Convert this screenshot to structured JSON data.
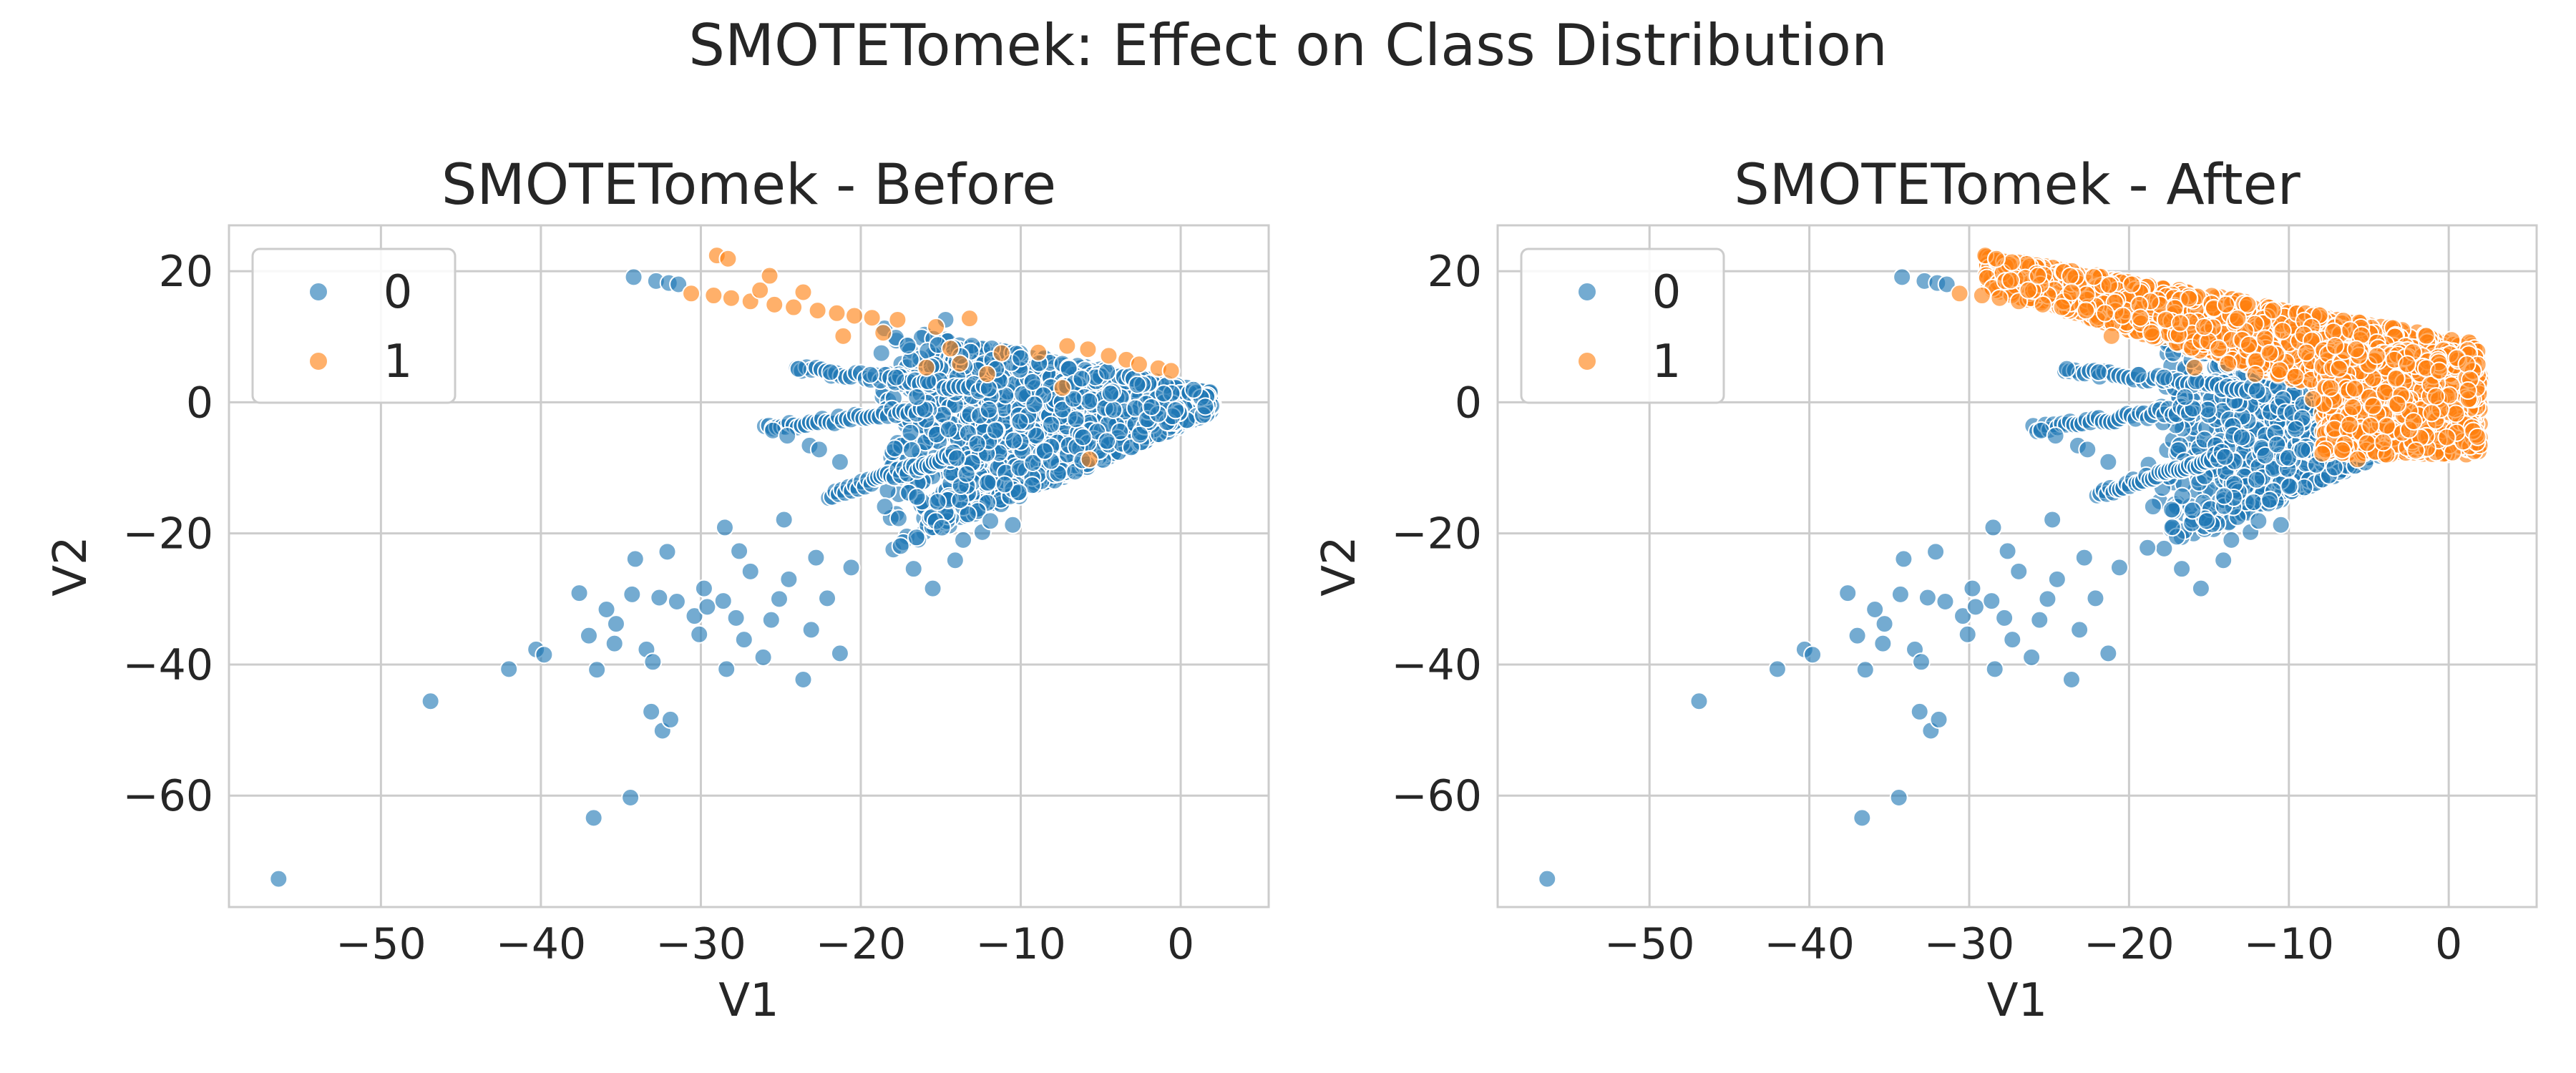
{
  "figure": {
    "title": "SMOTETomek: Effect on Class Distribution"
  },
  "colors": {
    "class_0": "#1f77b4",
    "class_1": "#ff7f0e",
    "grid": "#cccccc",
    "text": "#262626"
  },
  "chart_data": [
    {
      "type": "scatter",
      "title": "SMOTETomek - Before",
      "xlabel": "V1",
      "ylabel": "V2",
      "xlim": [
        -59.5,
        5.5
      ],
      "ylim": [
        -77,
        27
      ],
      "xticks": [
        -50,
        -40,
        -30,
        -20,
        -10,
        0
      ],
      "yticks": [
        20,
        0,
        -20,
        -40,
        -60
      ],
      "xtick_labels": [
        "−50",
        "−40",
        "−30",
        "−20",
        "−10",
        "0"
      ],
      "ytick_labels": [
        "20",
        "0",
        "−20",
        "−40",
        "−60"
      ],
      "grid": true,
      "legend": {
        "position": "upper-left",
        "entries": [
          "0",
          "1"
        ]
      },
      "series": [
        {
          "name": "0",
          "color": "#1f77b4",
          "points": [
            [
              -56.4,
              -72.7
            ],
            [
              -46.9,
              -45.6
            ],
            [
              -42,
              -40.7
            ],
            [
              -40.3,
              -37.7
            ],
            [
              -39.8,
              -38.5
            ],
            [
              -37.6,
              -29.1
            ],
            [
              -36.7,
              -63.4
            ],
            [
              -36.5,
              -40.8
            ],
            [
              -37,
              -35.6
            ],
            [
              -35.9,
              -31.6
            ],
            [
              -35.3,
              -33.8
            ],
            [
              -35.4,
              -36.8
            ],
            [
              -34.4,
              -60.3
            ],
            [
              -34.1,
              -23.9
            ],
            [
              -34.3,
              -29.3
            ],
            [
              -33.4,
              -37.7
            ],
            [
              -33,
              -39.6
            ],
            [
              -33.1,
              -47.2
            ],
            [
              -32.4,
              -50.1
            ],
            [
              -32.6,
              -29.8
            ],
            [
              -31.9,
              -48.4
            ],
            [
              -32.1,
              -22.8
            ],
            [
              -31.5,
              -30.4
            ],
            [
              -30.4,
              -32.6
            ],
            [
              -29.8,
              -28.4
            ],
            [
              -29.6,
              -31.2
            ],
            [
              -30.1,
              -35.4
            ],
            [
              -28.6,
              -30.3
            ],
            [
              -28.4,
              -40.7
            ],
            [
              -28.5,
              -19.1
            ],
            [
              -27.8,
              -32.9
            ],
            [
              -27.3,
              -36.2
            ],
            [
              -26.9,
              -25.8
            ],
            [
              -27.6,
              -22.7
            ],
            [
              -26.1,
              -38.9
            ],
            [
              -25.6,
              -33.2
            ],
            [
              -25.1,
              -30
            ],
            [
              -24.8,
              -17.9
            ],
            [
              -24.5,
              -27
            ],
            [
              -23.6,
              -42.3
            ],
            [
              -23.1,
              -34.7
            ],
            [
              -22.8,
              -23.7
            ],
            [
              -22.1,
              -29.9
            ],
            [
              -21.3,
              -38.3
            ],
            [
              -20.6,
              -25.2
            ],
            [
              -34.2,
              19.1
            ],
            [
              -32.8,
              18.5
            ],
            [
              -32,
              18.2
            ],
            [
              -31.4,
              18
            ],
            [
              -23.9,
              5.1
            ],
            [
              -21.9,
              4.6
            ],
            [
              -19.4,
              4.2
            ],
            [
              -17.8,
              3.8
            ],
            [
              -15.8,
              3.2
            ],
            [
              -25.5,
              -4.3
            ],
            [
              -24.6,
              -5.1
            ],
            [
              -23.2,
              -6.6
            ],
            [
              -22.6,
              -7.2
            ],
            [
              -21.3,
              -9.1
            ],
            [
              -16.5,
              0.8
            ],
            [
              -14.7,
              12.6
            ],
            [
              -15.5,
              -28.4
            ],
            [
              -16.7,
              -25.4
            ],
            [
              -14.1,
              -24.1
            ],
            [
              -13.6,
              -21
            ],
            [
              -18.5,
              -15.9
            ],
            [
              -12.4,
              -19.8
            ],
            [
              -11.9,
              -18.1
            ],
            [
              -10.5,
              -18.7
            ]
          ]
        },
        {
          "name": "1",
          "color": "#ff7f0e",
          "points": [
            [
              -29,
              22.4
            ],
            [
              -28.3,
              21.9
            ],
            [
              -30.6,
              16.6
            ],
            [
              -29.2,
              16.3
            ],
            [
              -28.1,
              15.9
            ],
            [
              -26.9,
              15.4
            ],
            [
              -26.3,
              17.1
            ],
            [
              -25.7,
              19.3
            ],
            [
              -25.4,
              14.9
            ],
            [
              -24.2,
              14.5
            ],
            [
              -23.6,
              16.8
            ],
            [
              -22.7,
              14
            ],
            [
              -21.5,
              13.6
            ],
            [
              -20.4,
              13.2
            ],
            [
              -19.3,
              12.9
            ],
            [
              -21.1,
              10.1
            ],
            [
              -18.6,
              10.6
            ],
            [
              -17.7,
              12.6
            ],
            [
              -15.3,
              11.5
            ],
            [
              -13.2,
              12.8
            ],
            [
              -14.4,
              8.2
            ],
            [
              -15.9,
              5.3
            ],
            [
              -13.8,
              5.9
            ],
            [
              -12.1,
              4.3
            ],
            [
              -11.2,
              7.5
            ],
            [
              -8.9,
              7.6
            ],
            [
              -7.1,
              8.6
            ],
            [
              -5.8,
              8.1
            ],
            [
              -4.5,
              7.1
            ],
            [
              -3.4,
              6.5
            ],
            [
              -2.6,
              5.8
            ],
            [
              -1.4,
              5.2
            ],
            [
              -0.6,
              4.8
            ],
            [
              -7.4,
              2.2
            ],
            [
              -5.7,
              -8.7
            ]
          ]
        }
      ]
    },
    {
      "type": "scatter",
      "title": "SMOTETomek - After",
      "xlabel": "V1",
      "ylabel": "V2",
      "xlim": [
        -59.5,
        5.5
      ],
      "ylim": [
        -77,
        27
      ],
      "xticks": [
        -50,
        -40,
        -30,
        -20,
        -10,
        0
      ],
      "yticks": [
        20,
        0,
        -20,
        -40,
        -60
      ],
      "xtick_labels": [
        "−50",
        "−40",
        "−30",
        "−20",
        "−10",
        "0"
      ],
      "ytick_labels": [
        "20",
        "0",
        "−20",
        "−40",
        "−60"
      ],
      "grid": true,
      "legend": {
        "position": "upper-left",
        "entries": [
          "0",
          "1"
        ]
      },
      "series": [
        {
          "name": "0",
          "color": "#1f77b4",
          "points": [
            [
              -56.4,
              -72.7
            ],
            [
              -46.9,
              -45.6
            ],
            [
              -42,
              -40.7
            ],
            [
              -40.3,
              -37.7
            ],
            [
              -39.8,
              -38.5
            ],
            [
              -37.6,
              -29.1
            ],
            [
              -36.7,
              -63.4
            ],
            [
              -36.5,
              -40.8
            ],
            [
              -37,
              -35.6
            ],
            [
              -35.9,
              -31.6
            ],
            [
              -35.3,
              -33.8
            ],
            [
              -35.4,
              -36.8
            ],
            [
              -34.4,
              -60.3
            ],
            [
              -34.1,
              -23.9
            ],
            [
              -34.3,
              -29.3
            ],
            [
              -33.4,
              -37.7
            ],
            [
              -33,
              -39.6
            ],
            [
              -33.1,
              -47.2
            ],
            [
              -32.4,
              -50.1
            ],
            [
              -32.6,
              -29.8
            ],
            [
              -31.9,
              -48.4
            ],
            [
              -32.1,
              -22.8
            ],
            [
              -31.5,
              -30.4
            ],
            [
              -30.4,
              -32.6
            ],
            [
              -29.8,
              -28.4
            ],
            [
              -29.6,
              -31.2
            ],
            [
              -30.1,
              -35.4
            ],
            [
              -28.6,
              -30.3
            ],
            [
              -28.4,
              -40.7
            ],
            [
              -28.5,
              -19.1
            ],
            [
              -27.8,
              -32.9
            ],
            [
              -27.3,
              -36.2
            ],
            [
              -26.9,
              -25.8
            ],
            [
              -27.6,
              -22.7
            ],
            [
              -26.1,
              -38.9
            ],
            [
              -25.6,
              -33.2
            ],
            [
              -25.1,
              -30
            ],
            [
              -24.8,
              -17.9
            ],
            [
              -24.5,
              -27
            ],
            [
              -23.6,
              -42.3
            ],
            [
              -23.1,
              -34.7
            ],
            [
              -22.8,
              -23.7
            ],
            [
              -22.1,
              -29.9
            ],
            [
              -21.3,
              -38.3
            ],
            [
              -20.6,
              -25.2
            ],
            [
              -34.2,
              19.1
            ],
            [
              -32.8,
              18.5
            ],
            [
              -32,
              18.2
            ],
            [
              -31.4,
              18
            ],
            [
              -23.9,
              5.1
            ],
            [
              -21.9,
              4.6
            ],
            [
              -19.4,
              4.2
            ],
            [
              -17.8,
              3.8
            ],
            [
              -15.8,
              3.2
            ],
            [
              -25.5,
              -4.3
            ],
            [
              -24.6,
              -5.1
            ],
            [
              -23.2,
              -6.6
            ],
            [
              -22.6,
              -7.2
            ],
            [
              -21.3,
              -9.1
            ],
            [
              -16.5,
              0.8
            ],
            [
              -15.5,
              -28.4
            ],
            [
              -16.7,
              -25.4
            ],
            [
              -14.1,
              -24.1
            ],
            [
              -13.6,
              -21
            ],
            [
              -18.5,
              -15.9
            ],
            [
              -12.4,
              -19.8
            ],
            [
              -11.9,
              -18.1
            ],
            [
              -10.5,
              -18.7
            ]
          ]
        },
        {
          "name": "1",
          "color": "#ff7f0e",
          "points": [
            [
              -29,
              22.4
            ],
            [
              -28.3,
              21.9
            ],
            [
              -30.6,
              16.6
            ],
            [
              -29.2,
              16.3
            ],
            [
              -28.1,
              15.9
            ],
            [
              -26.9,
              15.4
            ],
            [
              -26.3,
              17.1
            ],
            [
              -25.7,
              19.3
            ],
            [
              -25.4,
              14.9
            ],
            [
              -24.2,
              14.5
            ],
            [
              -23.6,
              16.8
            ],
            [
              -22.7,
              14
            ],
            [
              -21.5,
              13.6
            ],
            [
              -20.4,
              13.2
            ],
            [
              -19.3,
              12.9
            ],
            [
              -21.1,
              10.1
            ],
            [
              -18.6,
              10.6
            ],
            [
              -17.7,
              12.6
            ],
            [
              -15.3,
              11.5
            ],
            [
              -13.2,
              12.8
            ],
            [
              -14.4,
              8.2
            ],
            [
              -15.9,
              5.3
            ],
            [
              -13.8,
              5.9
            ],
            [
              -12.1,
              4.3
            ],
            [
              -11.2,
              7.5
            ],
            [
              -8.9,
              7.6
            ],
            [
              -7.1,
              8.6
            ],
            [
              -5.8,
              8.1
            ],
            [
              -4.5,
              7.1
            ],
            [
              -3.4,
              6.5
            ],
            [
              -2.6,
              5.8
            ],
            [
              -1.4,
              5.2
            ],
            [
              -0.6,
              4.8
            ],
            [
              -7.4,
              2.2
            ],
            [
              -5.7,
              -8.7
            ],
            [
              -8.5,
              0.5
            ],
            [
              -6.2,
              -3.4
            ],
            [
              -4.1,
              -6.1
            ],
            [
              -2.2,
              -2.9
            ],
            [
              -0.8,
              0.9
            ],
            [
              1.2,
              1.8
            ],
            [
              -9.6,
              3.9
            ],
            [
              -10.4,
              10.9
            ],
            [
              -16.8,
              12.1
            ],
            [
              -27.4,
              18.6
            ]
          ]
        }
      ]
    }
  ]
}
